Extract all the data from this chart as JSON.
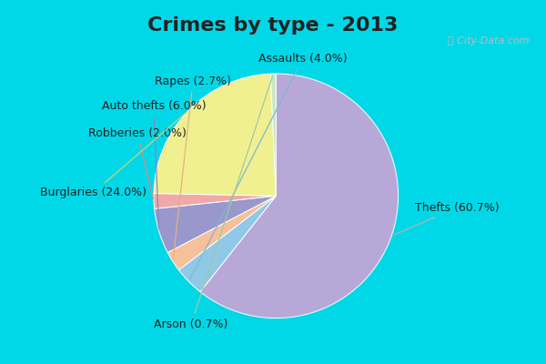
{
  "title": "Crimes by type - 2013",
  "background_cyan": "#00d8e8",
  "background_inner": "#ddf0e4",
  "title_fontsize": 16,
  "label_fontsize": 9,
  "ordered_labels": [
    "Thefts",
    "Assaults",
    "Rapes",
    "Auto thefts",
    "Robberies",
    "Burglaries",
    "Arson"
  ],
  "ordered_values": [
    60.7,
    4.0,
    2.7,
    6.0,
    2.0,
    24.0,
    0.7
  ],
  "ordered_colors": [
    "#b8a8d8",
    "#90c8e8",
    "#f5c09a",
    "#9898cc",
    "#f0a8a8",
    "#f0f090",
    "#c8e8c0"
  ],
  "startangle": 90,
  "label_positions": {
    "Thefts (60.7%)": [
      1.15,
      -0.1,
      "left"
    ],
    "Assaults (4.0%)": [
      0.1,
      0.9,
      "left"
    ],
    "Rapes (2.7%)": [
      -0.08,
      0.75,
      "right"
    ],
    "Auto thefts (6.0%)": [
      -0.25,
      0.58,
      "right"
    ],
    "Robberies (2.0%)": [
      -0.38,
      0.4,
      "right"
    ],
    "Burglaries (24.0%)": [
      -0.65,
      0.0,
      "right"
    ],
    "Arson (0.7%)": [
      -0.1,
      -0.88,
      "right"
    ]
  }
}
